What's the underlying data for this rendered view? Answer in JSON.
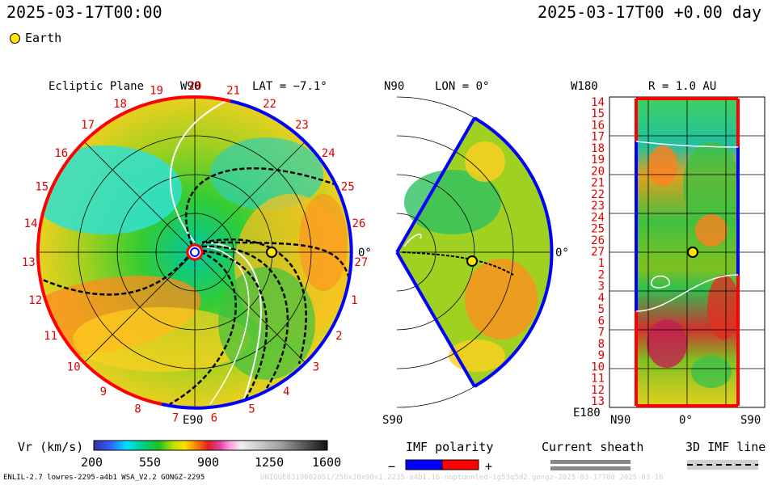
{
  "header": {
    "left_time": "2025-03-17T00:00",
    "right_time": "2025-03-17T00 +0.00 day"
  },
  "legend": {
    "earth_label": "Earth",
    "earth_color": "#ffe600"
  },
  "panels": {
    "ecliptic": {
      "title": "Ecliptic Plane",
      "top_label": "W90",
      "lat_label": "LAT = −7.1°",
      "bottom_label": "E90",
      "right_label": "0°",
      "carrington_ticks": [
        "20",
        "21",
        "22",
        "23",
        "24",
        "25",
        "26",
        "27",
        "1",
        "2",
        "3",
        "4",
        "5",
        "6",
        "7",
        "8",
        "9",
        "10",
        "11",
        "12",
        "13",
        "14",
        "15",
        "16",
        "17",
        "18",
        "19"
      ]
    },
    "meridional": {
      "top_label": "N90",
      "lon_label": "LON = 0°",
      "bottom_label": "S90",
      "right_label": "0°"
    },
    "radial": {
      "top_left_label": "W180",
      "title": "R = 1.0 AU",
      "bottom_left_label": "E180",
      "bottom_labels": [
        "N90",
        "0°",
        "S90"
      ],
      "y_ticks": [
        "14",
        "15",
        "16",
        "17",
        "18",
        "19",
        "20",
        "21",
        "22",
        "23",
        "24",
        "25",
        "26",
        "27",
        "1",
        "2",
        "3",
        "4",
        "5",
        "6",
        "7",
        "8",
        "9",
        "10",
        "11",
        "12",
        "13"
      ]
    }
  },
  "colorbar": {
    "label": "Vr (km/s)",
    "ticks": [
      "200",
      "550",
      "900",
      "1250",
      "1600"
    ],
    "range": [
      200,
      1600
    ]
  },
  "imf_polarity": {
    "label": "IMF polarity",
    "minus": "−",
    "plus": "+",
    "neg_color": "#0000ff",
    "pos_color": "#ff0000"
  },
  "current_sheath": {
    "label": "Current sheath"
  },
  "imf_line": {
    "label": "3D IMF line"
  },
  "footer": {
    "left": "ENLIL-2.7 lowres-2295-a4b1 WSA_V2.2 GONGZ-2295",
    "right": "UNIQUE0319002651/256x30x90x1.2235-a4b1.16-noptunnled-1g53q5d2.gongz-2025-03-17T00   2025-03-16"
  },
  "chart_data": {
    "type": "heatmap",
    "variable": "Vr (km/s)",
    "colorbar_range": [
      200,
      1600
    ],
    "earth": {
      "r_au": 1.0,
      "lat_deg": -7.1,
      "lon_deg": 0
    },
    "panels": [
      "Ecliptic Plane",
      "LON = 0°",
      "R = 1.0 AU"
    ]
  }
}
